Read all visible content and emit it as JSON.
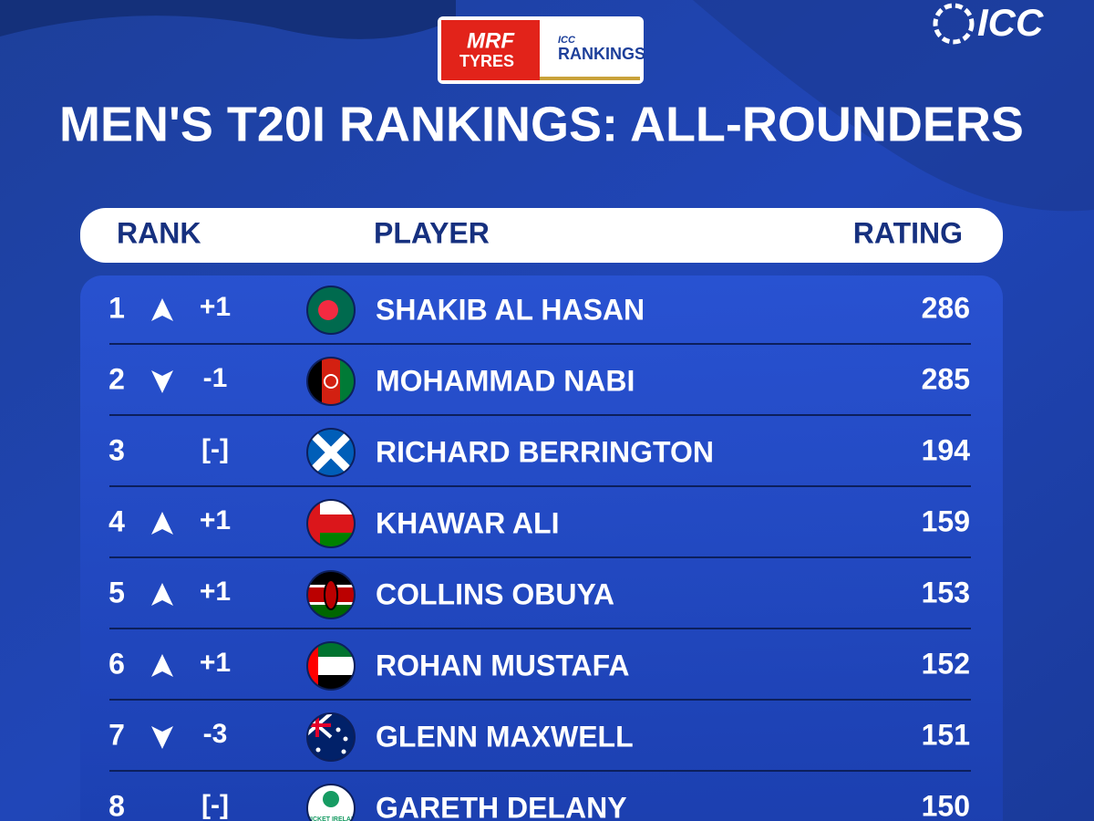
{
  "header": {
    "sponsor_top": "MRF",
    "sponsor_bottom": "TYRES",
    "badge_small": "ICC",
    "badge_big": "RANKINGS",
    "logo": "ICC",
    "title": "MEN'S T20I RANKINGS: ALL-ROUNDERS"
  },
  "table": {
    "columns": [
      "RANK",
      "PLAYER",
      "RATING"
    ],
    "rows": [
      {
        "rank": 1,
        "change": "+1",
        "player": "SHAKIB AL HASAN",
        "rating": 286
      },
      {
        "rank": 2,
        "change": "-1",
        "player": "MOHAMMAD NABI",
        "rating": 285
      },
      {
        "rank": 3,
        "change": "[-]",
        "player": "RICHARD BERRINGTON",
        "rating": 194
      },
      {
        "rank": 4,
        "change": "+1",
        "player": "KHAWAR ALI",
        "rating": 159
      },
      {
        "rank": 5,
        "change": "+1",
        "player": "COLLINS OBUYA",
        "rating": 153
      },
      {
        "rank": 6,
        "change": "+1",
        "player": "ROHAN MUSTAFA",
        "rating": 152
      },
      {
        "rank": 7,
        "change": "-3",
        "player": "GLENN MAXWELL",
        "rating": 151
      },
      {
        "rank": 8,
        "change": "[-]",
        "player": "GARETH DELANY",
        "rating": 150,
        "flag_text": "CRICKET IRELAND"
      }
    ]
  }
}
